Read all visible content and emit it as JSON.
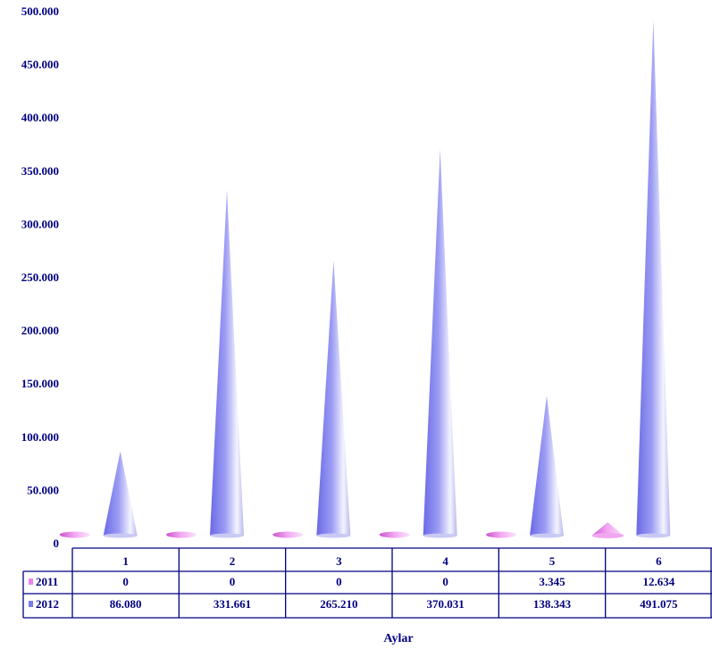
{
  "chart_data": {
    "type": "bar",
    "bar_shape": "cone-3d",
    "categories": [
      "1",
      "2",
      "3",
      "4",
      "5",
      "6"
    ],
    "series": [
      {
        "name": "2011",
        "values": [
          0,
          0,
          0,
          0,
          3345,
          12634
        ],
        "value_labels": [
          "0",
          "0",
          "0",
          "0",
          "3.345",
          "12.634"
        ],
        "color": "#ee82ee"
      },
      {
        "name": "2012",
        "values": [
          86080,
          331661,
          265210,
          370031,
          138343,
          491075
        ],
        "value_labels": [
          "86.080",
          "331.661",
          "265.210",
          "370.031",
          "138.343",
          "491.075"
        ],
        "color": "#7b7bf0"
      }
    ],
    "yticks": [
      0,
      50000,
      100000,
      150000,
      200000,
      250000,
      300000,
      350000,
      400000,
      450000,
      500000
    ],
    "ytick_labels": [
      "0",
      "50.000",
      "100.000",
      "150.000",
      "200.000",
      "250.000",
      "300.000",
      "350.000",
      "400.000",
      "450.000",
      "500.000"
    ],
    "ylim": [
      0,
      500000
    ],
    "xlabel": "Aylar",
    "legend": "data-table-below",
    "grid": false,
    "text_color": "#000080"
  }
}
